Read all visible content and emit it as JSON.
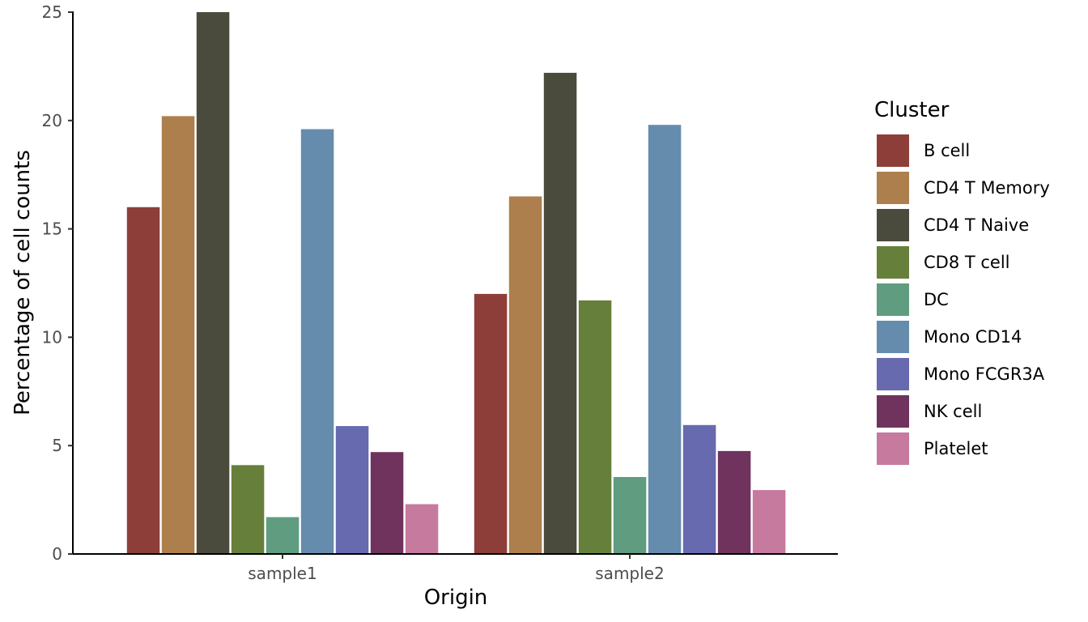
{
  "chart_data": {
    "type": "bar",
    "categories": [
      "sample1",
      "sample2"
    ],
    "xlabel": "Origin",
    "ylabel": "Percentage of cell counts",
    "ylim": [
      0,
      25
    ],
    "yticks": [
      0,
      5,
      10,
      15,
      20,
      25
    ],
    "grid": false,
    "legend": {
      "title": "Cluster",
      "position": "right"
    },
    "series": [
      {
        "name": "B cell",
        "color": "#8E3E39",
        "values": [
          16.0,
          12.0
        ]
      },
      {
        "name": "CD4 T Memory",
        "color": "#AD7F4C",
        "values": [
          20.2,
          16.5
        ]
      },
      {
        "name": "CD4 T Naive",
        "color": "#4A4B3C",
        "values": [
          25.0,
          22.2
        ]
      },
      {
        "name": "CD8 T cell",
        "color": "#66803B",
        "values": [
          4.1,
          11.7
        ]
      },
      {
        "name": "DC",
        "color": "#5F9C80",
        "values": [
          1.7,
          3.55
        ]
      },
      {
        "name": "Mono CD14",
        "color": "#658CAD",
        "values": [
          19.6,
          19.8
        ]
      },
      {
        "name": "Mono FCGR3A",
        "color": "#676AAE",
        "values": [
          5.9,
          5.95
        ]
      },
      {
        "name": "NK cell",
        "color": "#70335E",
        "values": [
          4.7,
          4.75
        ]
      },
      {
        "name": "Platelet",
        "color": "#C67A9D",
        "values": [
          2.3,
          2.95
        ]
      }
    ]
  }
}
